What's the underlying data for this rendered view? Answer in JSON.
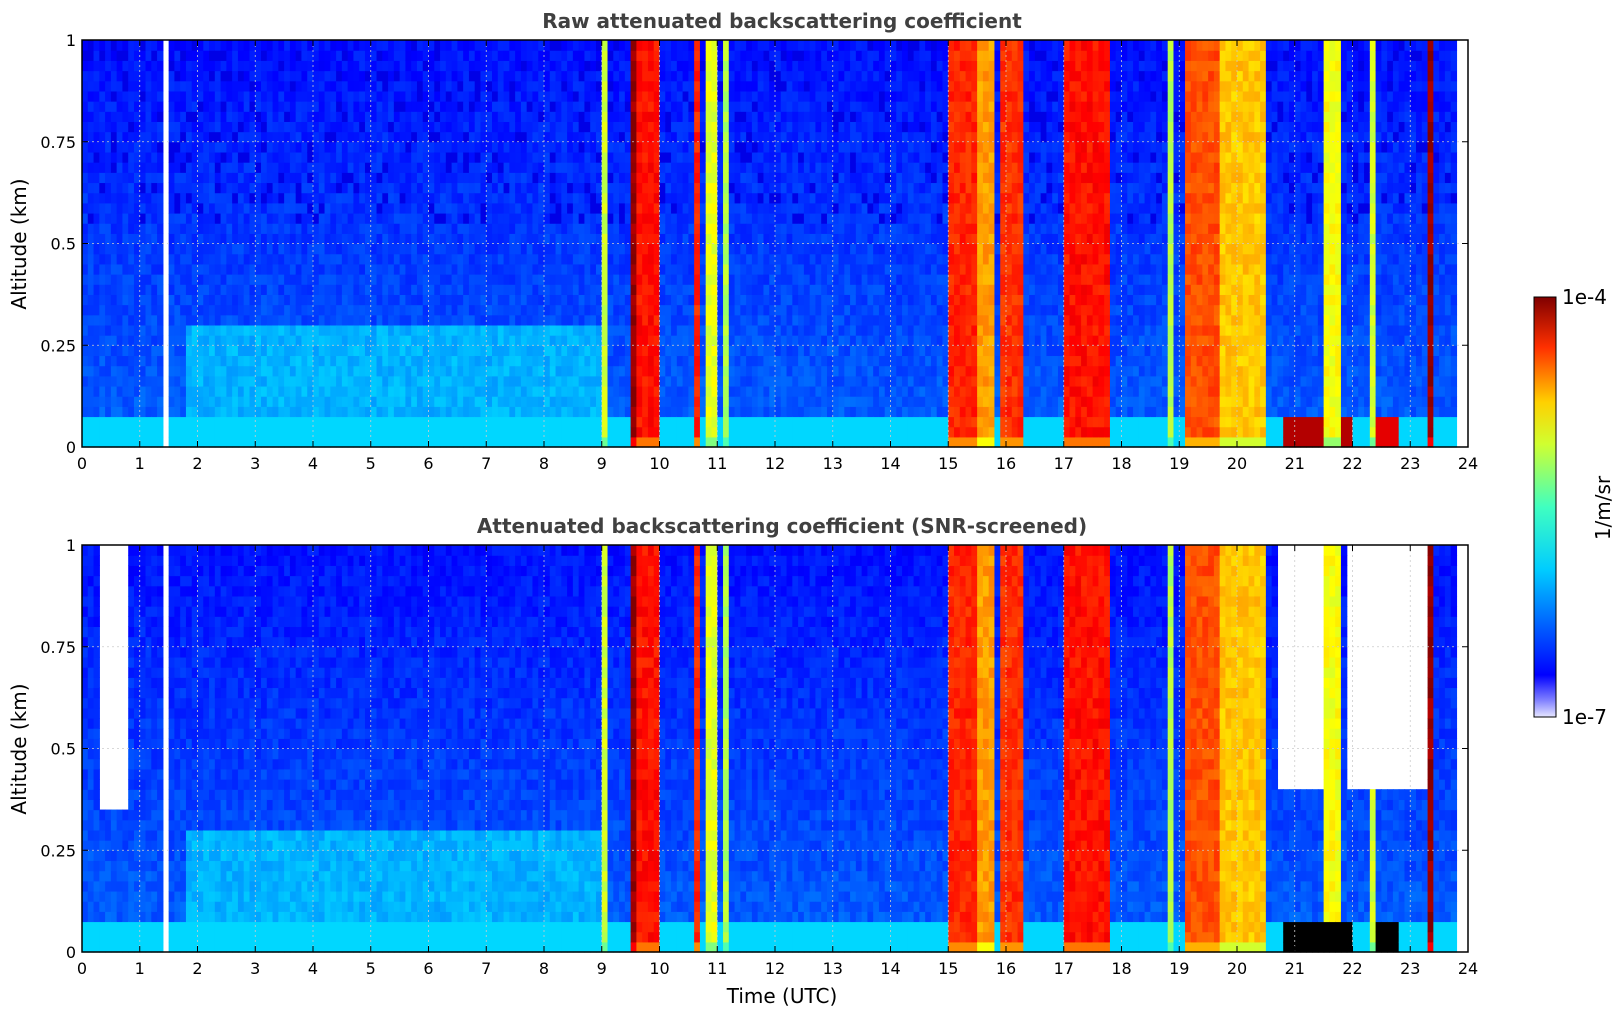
{
  "chart_data": [
    {
      "type": "heatmap",
      "title": "Raw attenuated backscattering coefficient",
      "xlabel": "",
      "ylabel": "Altitude (km)",
      "xlim": [
        0,
        24
      ],
      "ylim": [
        0,
        1
      ],
      "x_ticks": [
        "0",
        "1",
        "2",
        "3",
        "4",
        "5",
        "6",
        "7",
        "8",
        "9",
        "10",
        "11",
        "12",
        "13",
        "14",
        "15",
        "16",
        "17",
        "18",
        "19",
        "20",
        "21",
        "22",
        "23",
        "24"
      ],
      "y_ticks": [
        "0",
        "0.25",
        "0.5",
        "0.75",
        "1"
      ],
      "grid": true,
      "colormap": "jet",
      "color_scale": "log",
      "data_gaps": [
        [
          1.45,
          1.55
        ],
        [
          23.85,
          24
        ]
      ],
      "layers": [
        {
          "t_start": 9.0,
          "t_end": 9.07,
          "level": 0.58
        },
        {
          "t_start": 9.55,
          "t_end": 9.65,
          "level": 0.98
        },
        {
          "t_start": 9.65,
          "t_end": 10.0,
          "level": 0.86
        },
        {
          "t_start": 10.6,
          "t_end": 10.75,
          "level": 0.84
        },
        {
          "t_start": 10.85,
          "t_end": 10.97,
          "level": 0.6
        },
        {
          "t_start": 11.1,
          "t_end": 11.2,
          "level": 0.55
        },
        {
          "t_start": 15.0,
          "t_end": 15.55,
          "level": 0.84
        },
        {
          "t_start": 15.55,
          "t_end": 15.8,
          "level": 0.72
        },
        {
          "t_start": 15.9,
          "t_end": 16.3,
          "level": 0.83
        },
        {
          "t_start": 17.05,
          "t_end": 17.85,
          "level": 0.86
        },
        {
          "t_start": 18.8,
          "t_end": 18.95,
          "level": 0.55
        },
        {
          "t_start": 19.1,
          "t_end": 19.7,
          "level": 0.8
        },
        {
          "t_start": 19.7,
          "t_end": 20.5,
          "level": 0.68
        },
        {
          "t_start": 21.55,
          "t_end": 21.85,
          "level": 0.62
        },
        {
          "t_start": 22.3,
          "t_end": 22.45,
          "level": 0.58
        },
        {
          "t_start": 23.33,
          "t_end": 23.38,
          "level": 0.98
        }
      ],
      "boundary_layer": {
        "max_altitude_km": 0.3,
        "level": 0.42
      },
      "aerosol_patches": [
        {
          "t_start": 20.8,
          "t_end": 22.0,
          "alt_max_km": 0.08,
          "level": 0.95
        },
        {
          "t_start": 22.45,
          "t_end": 22.8,
          "alt_max_km": 0.08,
          "level": 0.9
        }
      ]
    },
    {
      "type": "heatmap",
      "title": "Attenuated backscattering coefficient (SNR-screened)",
      "xlabel": "Time (UTC)",
      "ylabel": "Altitude (km)",
      "xlim": [
        0,
        24
      ],
      "ylim": [
        0,
        1
      ],
      "x_ticks": [
        "0",
        "1",
        "2",
        "3",
        "4",
        "5",
        "6",
        "7",
        "8",
        "9",
        "10",
        "11",
        "12",
        "13",
        "14",
        "15",
        "16",
        "17",
        "18",
        "19",
        "20",
        "21",
        "22",
        "23",
        "24"
      ],
      "y_ticks": [
        "0",
        "0.25",
        "0.5",
        "0.75",
        "1"
      ],
      "grid": true,
      "colormap": "jet",
      "color_scale": "log",
      "data_gaps": [
        [
          1.45,
          1.55
        ],
        [
          23.85,
          24
        ]
      ],
      "screened_regions": [
        {
          "t_start": 0.35,
          "t_end": 0.85,
          "alt_min_km": 0.35
        },
        {
          "t_start": 20.7,
          "t_end": 21.5,
          "alt_min_km": 0.4
        },
        {
          "t_start": 21.9,
          "t_end": 22.8,
          "alt_min_km": 0.4
        },
        {
          "t_start": 22.8,
          "t_end": 23.3,
          "alt_min_km": 0.4
        }
      ],
      "masked_patches": [
        {
          "t_start": 20.8,
          "t_end": 22.0,
          "alt_max_km": 0.08
        },
        {
          "t_start": 22.45,
          "t_end": 22.8,
          "alt_max_km": 0.08
        }
      ]
    }
  ],
  "colorbar": {
    "label": "1/m/sr",
    "max_label": "1e-4",
    "min_label": "1e-7",
    "colormap": "jet",
    "min_color": "#e8e8ff",
    "max_color": "#800000"
  }
}
